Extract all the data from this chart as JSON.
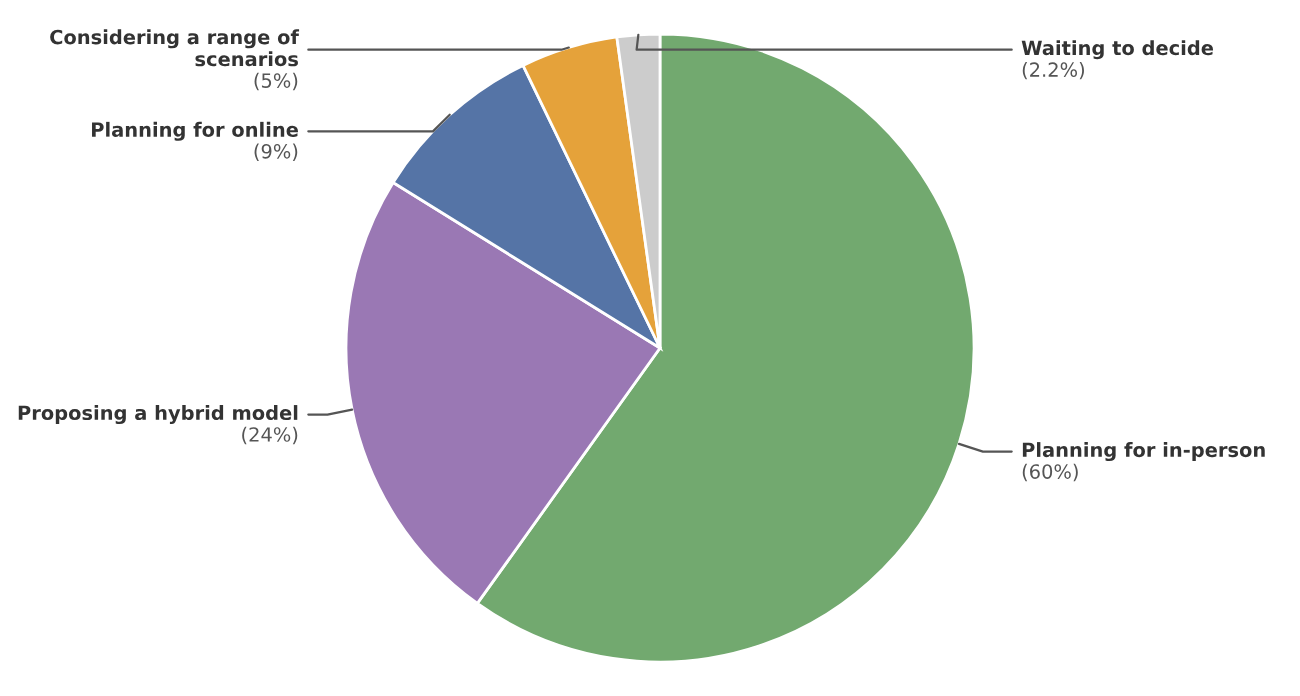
{
  "chart_data": {
    "type": "pie",
    "categories": [
      "Planning for in-person",
      "Proposing a hybrid model",
      "Planning for online",
      "Considering a range of\nscenarios",
      "Waiting to decide"
    ],
    "values": [
      60,
      24,
      9,
      5,
      2.2
    ],
    "colors": [
      "#72a96f",
      "#9a78b4",
      "#5574a6",
      "#e5a23a",
      "#cccccc"
    ],
    "value_labels": [
      "(60%)",
      "(24%)",
      "(9%)",
      "(5%)",
      "(2.2%)"
    ],
    "legend": false
  }
}
